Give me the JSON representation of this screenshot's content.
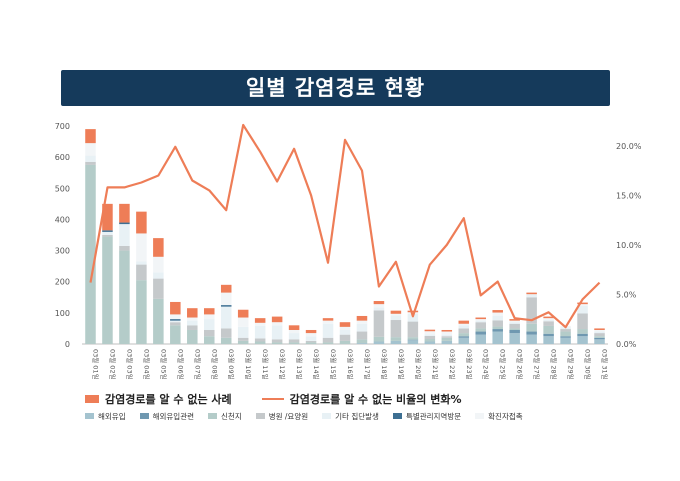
{
  "title": "일별 감염경로 현황",
  "colors": {
    "unknown": "#ee7d57",
    "line": "#ee7d57",
    "axis": "#bfbfbf",
    "tick_text": "#555555",
    "series": [
      "#a4c3cf",
      "#6f98b0",
      "#b4ccc9",
      "#c5c9cb",
      "#e8f1f5",
      "#3d6f92",
      "#f2f5f7"
    ]
  },
  "legend": {
    "unknown_label": "감염경로를 알 수 없는 사례",
    "ratio_label": "감염경로를 알 수 없는 비율의 변화%",
    "series_labels": [
      "해외유입",
      "해외유입관련",
      "신천지",
      "병원 /요양원",
      "기타 집단발생",
      "특별관리지역방문",
      "확진자접촉"
    ]
  },
  "chart_data": {
    "type": "bar+line",
    "categories": [
      "03월 01일",
      "03월 02일",
      "03월 03일",
      "03월 04일",
      "03월 05일",
      "03월 06일",
      "03월 07일",
      "03월 08일",
      "03월 09일",
      "03월 10일",
      "03월 11일",
      "03월 12일",
      "03월 13일",
      "03월 14일",
      "03월 15일",
      "03월 16일",
      "03월 17일",
      "03월 18일",
      "03월 19일",
      "03월 20일",
      "03월 21일",
      "03월 22일",
      "03월 23일",
      "03월 24일",
      "03월 25일",
      "03월 26일",
      "03월 27일",
      "03월 28일",
      "03월 29일",
      "03월 30일",
      "03월 31일"
    ],
    "y_left": {
      "min": 0,
      "max": 700,
      "ticks": [
        "0",
        "100",
        "200",
        "300",
        "400",
        "500",
        "600",
        "700"
      ]
    },
    "y_right": {
      "min": 0,
      "max": 0.22,
      "ticks": [
        "0.0%",
        "5.0%",
        "10.0%",
        "15.0%",
        "20.0%"
      ]
    },
    "stack_series": [
      {
        "name": "해외유입",
        "values": [
          0,
          0,
          0,
          0,
          0,
          0,
          0,
          0,
          0,
          0,
          0,
          0,
          0,
          0,
          0,
          0,
          3,
          8,
          10,
          12,
          8,
          10,
          20,
          30,
          40,
          35,
          30,
          25,
          20,
          25,
          15
        ]
      },
      {
        "name": "해외유입관련",
        "values": [
          0,
          0,
          0,
          0,
          0,
          0,
          0,
          0,
          0,
          0,
          0,
          0,
          0,
          0,
          0,
          0,
          0,
          0,
          0,
          2,
          0,
          0,
          5,
          10,
          8,
          10,
          10,
          8,
          5,
          8,
          5
        ]
      },
      {
        "name": "신천지",
        "values": [
          575,
          345,
          300,
          205,
          145,
          60,
          45,
          25,
          20,
          10,
          8,
          5,
          5,
          5,
          5,
          10,
          12,
          15,
          12,
          8,
          8,
          10,
          10,
          10,
          8,
          5,
          25,
          25,
          15,
          15,
          5
        ]
      },
      {
        "name": "병원 /요양원",
        "values": [
          10,
          5,
          15,
          50,
          65,
          10,
          15,
          20,
          30,
          10,
          10,
          10,
          10,
          5,
          15,
          20,
          25,
          85,
          55,
          50,
          10,
          5,
          15,
          20,
          20,
          15,
          85,
          15,
          8,
          50,
          10
        ]
      },
      {
        "name": "기타 집단발생",
        "values": [
          20,
          10,
          70,
          10,
          20,
          5,
          15,
          35,
          70,
          35,
          40,
          45,
          20,
          15,
          45,
          15,
          25,
          10,
          15,
          25,
          5,
          5,
          10,
          5,
          15,
          5,
          10,
          5,
          5,
          25,
          5
        ]
      },
      {
        "name": "특별관리지역방문",
        "values": [
          0,
          5,
          5,
          0,
          0,
          5,
          0,
          0,
          5,
          0,
          0,
          0,
          0,
          0,
          0,
          0,
          0,
          0,
          0,
          0,
          0,
          0,
          0,
          0,
          0,
          0,
          0,
          0,
          0,
          0,
          0
        ]
      },
      {
        "name": "확진자접촉",
        "values": [
          40,
          0,
          0,
          90,
          50,
          15,
          10,
          15,
          40,
          30,
          10,
          10,
          10,
          10,
          10,
          10,
          10,
          10,
          5,
          5,
          10,
          10,
          5,
          5,
          10,
          5,
          0,
          5,
          5,
          5,
          5
        ]
      }
    ],
    "unknown_cases": {
      "name": "감염경로를 알 수 없는 사례",
      "values": [
        45,
        85,
        60,
        70,
        60,
        40,
        30,
        20,
        25,
        25,
        15,
        18,
        15,
        10,
        8,
        15,
        15,
        10,
        10,
        5,
        5,
        5,
        10,
        5,
        8,
        5,
        5,
        5,
        0,
        5,
        5
      ]
    },
    "unknown_ratio": {
      "name": "감염경로를 알 수 없는 비율의 변화%",
      "values": [
        0.062,
        0.158,
        0.158,
        0.163,
        0.17,
        0.199,
        0.165,
        0.155,
        0.135,
        0.221,
        0.194,
        0.164,
        0.197,
        0.15,
        0.082,
        0.206,
        0.175,
        0.058,
        0.083,
        0.028,
        0.08,
        0.1,
        0.127,
        0.049,
        0.063,
        0.026,
        0.024,
        0.032,
        0.017,
        0.045,
        0.062
      ]
    }
  }
}
